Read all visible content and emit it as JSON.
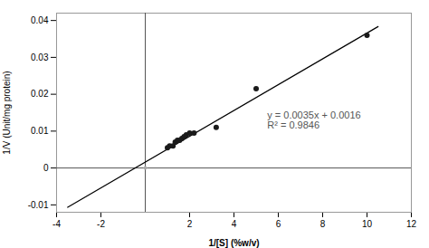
{
  "chart_data": {
    "type": "scatter",
    "xlabel": "1/[S] (%w/v)",
    "ylabel": "1/V (Unit/mg protein)",
    "xlim": [
      -4,
      12
    ],
    "ylim": [
      -0.012,
      0.042
    ],
    "xticks": [
      -4,
      -2,
      2,
      4,
      6,
      8,
      10,
      12
    ],
    "yticks": [
      -0.01,
      0,
      0.01,
      0.02,
      0.03,
      0.04
    ],
    "grid": false,
    "series": [
      {
        "type": "line",
        "color": "#000000",
        "x": [
          -3.5,
          10.5
        ],
        "values": [
          -0.01065,
          0.03835
        ]
      },
      {
        "type": "scatter",
        "color": "#1a1a1a",
        "x": [
          1.0,
          1.1,
          1.25,
          1.35,
          1.45,
          1.55,
          1.65,
          1.75,
          1.85,
          2.0,
          2.2,
          3.2,
          5.0,
          10.0
        ],
        "values": [
          0.0055,
          0.006,
          0.006,
          0.007,
          0.0075,
          0.0075,
          0.008,
          0.0085,
          0.009,
          0.0095,
          0.0095,
          0.011,
          0.0215,
          0.036
        ]
      },
      {
        "type": "scatter",
        "color": "#aaaaaa",
        "x": [
          0
        ],
        "values": [
          0
        ]
      }
    ],
    "annotations": [
      {
        "x": 5.5,
        "y": 0.013,
        "text": "y = 0.0035x + 0.0016\nR² = 0.9846",
        "color": "#555555"
      }
    ]
  }
}
